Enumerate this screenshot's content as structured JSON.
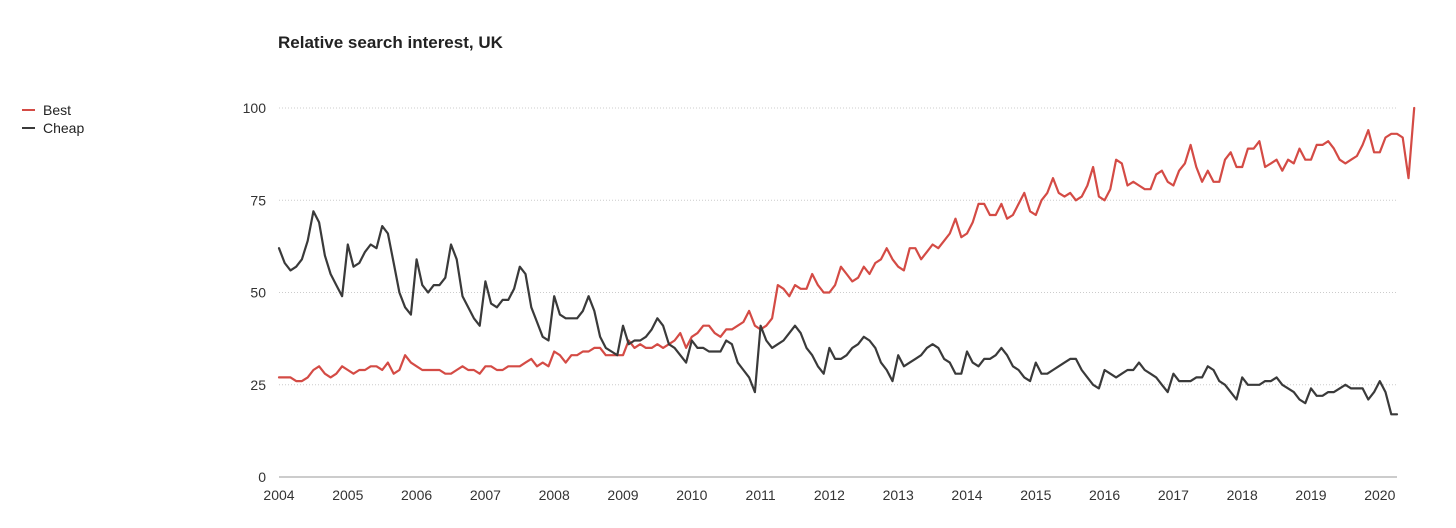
{
  "colors": {
    "best": "#d44b45",
    "cheap": "#3a3a3a",
    "grid": "#cccccc"
  },
  "chart_data": {
    "type": "line",
    "title": "Relative search interest, UK",
    "xlabel": "",
    "ylabel": "",
    "ylim": [
      0,
      100
    ],
    "xlim": [
      2004,
      2020.25
    ],
    "yticks": [
      0,
      25,
      50,
      75,
      100
    ],
    "xticks": [
      2004,
      2005,
      2006,
      2007,
      2008,
      2009,
      2010,
      2011,
      2012,
      2013,
      2014,
      2015,
      2016,
      2017,
      2018,
      2019,
      2020
    ],
    "grid": true,
    "legend_position": "top-left",
    "series": [
      {
        "name": "Best",
        "color": "#d44b45",
        "x_start": 2004.0,
        "x_step_months": 1,
        "values": [
          27,
          27,
          27,
          26,
          26,
          27,
          29,
          30,
          28,
          27,
          28,
          30,
          29,
          28,
          29,
          29,
          30,
          30,
          29,
          31,
          28,
          29,
          33,
          31,
          30,
          29,
          29,
          29,
          29,
          28,
          28,
          29,
          30,
          29,
          29,
          28,
          30,
          30,
          29,
          29,
          30,
          30,
          30,
          31,
          32,
          30,
          31,
          30,
          34,
          33,
          31,
          33,
          33,
          34,
          34,
          35,
          35,
          33,
          33,
          33,
          33,
          37,
          35,
          36,
          35,
          35,
          36,
          35,
          36,
          37,
          39,
          35,
          38,
          39,
          41,
          41,
          39,
          38,
          40,
          40,
          41,
          42,
          45,
          41,
          40,
          41,
          43,
          52,
          51,
          49,
          52,
          51,
          51,
          55,
          52,
          50,
          50,
          52,
          57,
          55,
          53,
          54,
          57,
          55,
          58,
          59,
          62,
          59,
          57,
          56,
          62,
          62,
          59,
          61,
          63,
          62,
          64,
          66,
          70,
          65,
          66,
          69,
          74,
          74,
          71,
          71,
          74,
          70,
          71,
          74,
          77,
          72,
          71,
          75,
          77,
          81,
          77,
          76,
          77,
          75,
          76,
          79,
          84,
          76,
          75,
          78,
          86,
          85,
          79,
          80,
          79,
          78,
          78,
          82,
          83,
          80,
          79,
          83,
          85,
          90,
          84,
          80,
          83,
          80,
          80,
          86,
          88,
          84,
          84,
          89,
          89,
          91,
          84,
          85,
          86,
          83,
          86,
          85,
          89,
          86,
          86,
          90,
          90,
          91,
          89,
          86,
          85,
          86,
          87,
          90,
          94,
          88,
          88,
          92,
          93,
          93,
          92,
          81,
          100
        ]
      },
      {
        "name": "Cheap",
        "color": "#3a3a3a",
        "x_start": 2004.0,
        "x_step_months": 1,
        "values": [
          62,
          58,
          56,
          57,
          59,
          64,
          72,
          69,
          60,
          55,
          52,
          49,
          63,
          57,
          58,
          61,
          63,
          62,
          68,
          66,
          58,
          50,
          46,
          44,
          59,
          52,
          50,
          52,
          52,
          54,
          63,
          59,
          49,
          46,
          43,
          41,
          53,
          47,
          46,
          48,
          48,
          51,
          57,
          55,
          46,
          42,
          38,
          37,
          49,
          44,
          43,
          43,
          43,
          45,
          49,
          45,
          38,
          35,
          34,
          33,
          41,
          36,
          37,
          37,
          38,
          40,
          43,
          41,
          36,
          35,
          33,
          31,
          37,
          35,
          35,
          34,
          34,
          34,
          37,
          36,
          31,
          29,
          27,
          23,
          41,
          37,
          35,
          36,
          37,
          39,
          41,
          39,
          35,
          33,
          30,
          28,
          35,
          32,
          32,
          33,
          35,
          36,
          38,
          37,
          35,
          31,
          29,
          26,
          33,
          30,
          31,
          32,
          33,
          35,
          36,
          35,
          32,
          31,
          28,
          28,
          34,
          31,
          30,
          32,
          32,
          33,
          35,
          33,
          30,
          29,
          27,
          26,
          31,
          28,
          28,
          29,
          30,
          31,
          32,
          32,
          29,
          27,
          25,
          24,
          29,
          28,
          27,
          28,
          29,
          29,
          31,
          29,
          28,
          27,
          25,
          23,
          28,
          26,
          26,
          26,
          27,
          27,
          30,
          29,
          26,
          25,
          23,
          21,
          27,
          25,
          25,
          25,
          26,
          26,
          27,
          25,
          24,
          23,
          21,
          20,
          24,
          22,
          22,
          23,
          23,
          24,
          25,
          24,
          24,
          24,
          21,
          23,
          26,
          23,
          17,
          17
        ]
      }
    ]
  }
}
